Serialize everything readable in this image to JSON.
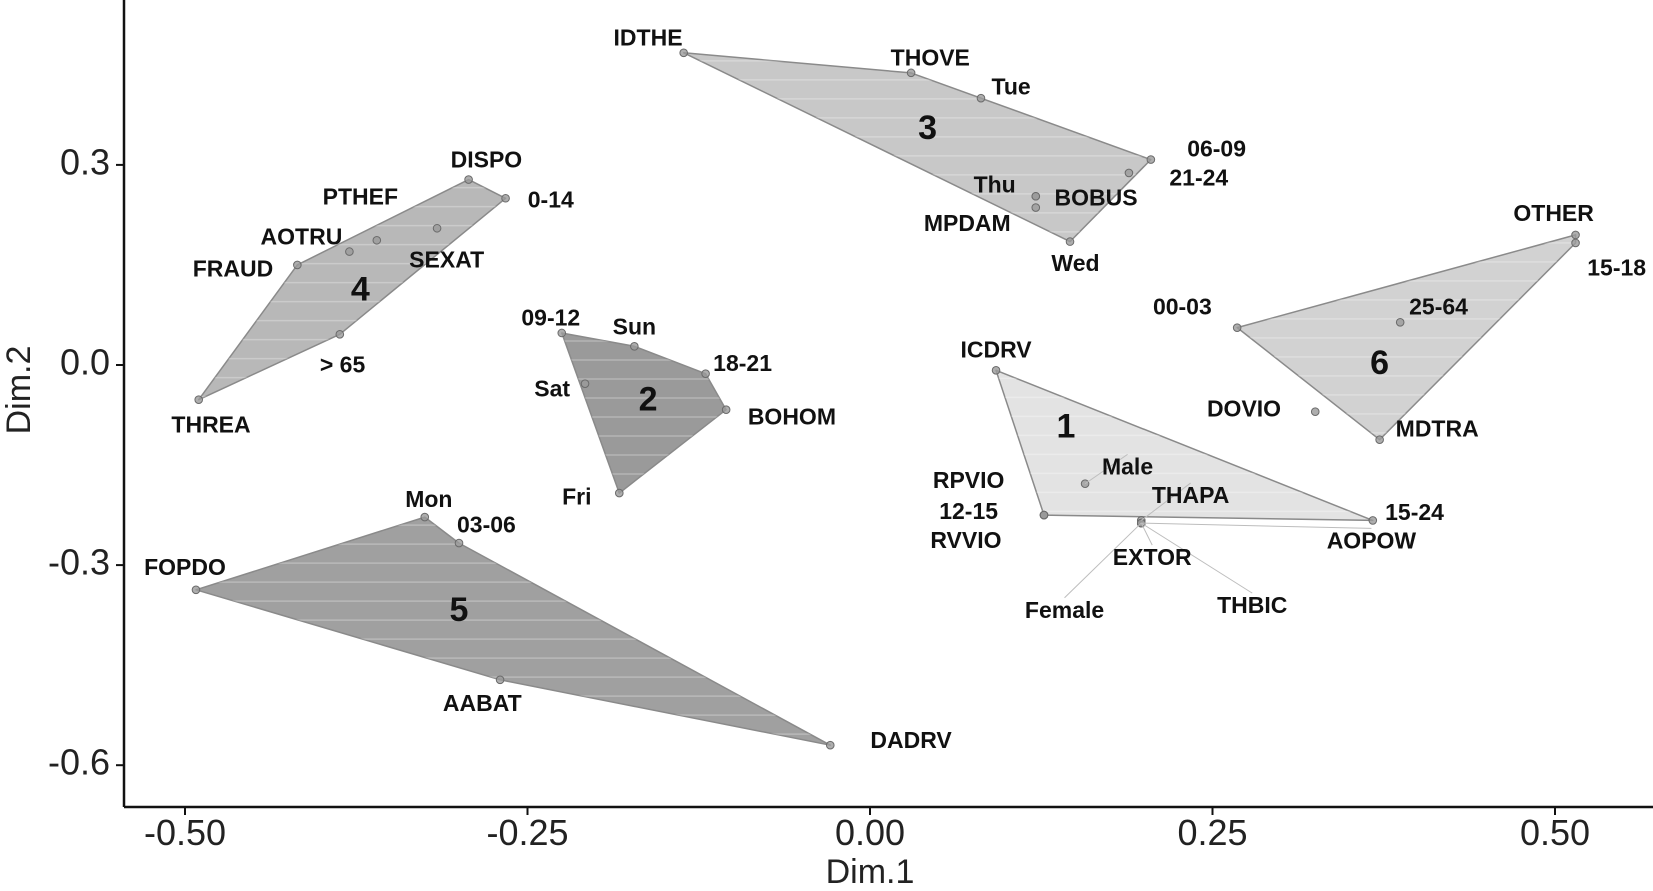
{
  "chart_data": {
    "type": "scatter",
    "xlabel": "Dim.1",
    "ylabel": "Dim.2",
    "xlim": [
      -0.53,
      0.56
    ],
    "ylim": [
      -0.62,
      0.52
    ],
    "xticks": [
      "-0.50",
      "-0.25",
      "0.00",
      "0.25",
      "0.50"
    ],
    "xtick_values": [
      -0.5,
      -0.25,
      0,
      0.25,
      0.5
    ],
    "yticks": [
      "0.3",
      "0.0",
      "-0.3",
      "-0.6"
    ],
    "ytick_values": [
      0.3,
      0,
      -0.3,
      -0.6
    ],
    "grid": false,
    "clusters": [
      {
        "label": "1",
        "fill": "#e3e3e3",
        "label_at": [
          0.143,
          -0.095
        ],
        "hull": [
          "ICDRV",
          "15-24",
          "12-15"
        ],
        "points": [
          {
            "name": "ICDRV",
            "x": 0.092,
            "y": -0.008,
            "lx": 0.092,
            "ly": 0.02,
            "anchor": "middle"
          },
          {
            "name": "Male",
            "x": 0.157,
            "y": -0.178,
            "lx": 0.188,
            "ly": -0.155,
            "anchor": "middle"
          },
          {
            "name": "THAPA",
            "x": 0.198,
            "y": -0.233,
            "lx": 0.234,
            "ly": -0.198,
            "anchor": "middle"
          },
          {
            "name": "15-24",
            "x": 0.367,
            "y": -0.233,
            "lx": 0.376,
            "ly": -0.223,
            "anchor": "start"
          },
          {
            "name": "RPVIO",
            "x": 0.127,
            "y": -0.225,
            "lx": 0.072,
            "ly": -0.175,
            "anchor": "middle"
          },
          {
            "name": "12-15",
            "x": 0.127,
            "y": -0.225,
            "lx": 0.072,
            "ly": -0.222,
            "anchor": "middle"
          },
          {
            "name": "RVVIO",
            "x": 0.127,
            "y": -0.225,
            "lx": 0.096,
            "ly": -0.265,
            "anchor": "end"
          },
          {
            "name": "EXTOR",
            "x": 0.198,
            "y": -0.237,
            "lx": 0.206,
            "ly": -0.291,
            "anchor": "middle"
          },
          {
            "name": "AOPOW",
            "x": 0.198,
            "y": -0.237,
            "lx": 0.366,
            "ly": -0.266,
            "anchor": "middle"
          },
          {
            "name": "Female",
            "x": 0.198,
            "y": -0.237,
            "lx": 0.142,
            "ly": -0.37,
            "anchor": "middle"
          },
          {
            "name": "THBIC",
            "x": 0.198,
            "y": -0.237,
            "lx": 0.279,
            "ly": -0.363,
            "anchor": "middle"
          }
        ]
      },
      {
        "label": "2",
        "fill": "#9a9a9a",
        "label_at": [
          -0.162,
          -0.055
        ],
        "hull": [
          "09-12",
          "Sun",
          "18-21",
          "BOHOM",
          "Fri"
        ],
        "points": [
          {
            "name": "09-12",
            "x": -0.225,
            "y": 0.048,
            "lx": -0.233,
            "ly": 0.068,
            "anchor": "middle"
          },
          {
            "name": "Sun",
            "x": -0.172,
            "y": 0.028,
            "lx": -0.172,
            "ly": 0.055,
            "anchor": "middle"
          },
          {
            "name": "18-21",
            "x": -0.12,
            "y": -0.013,
            "lx": -0.093,
            "ly": 0.0,
            "anchor": "middle"
          },
          {
            "name": "BOHOM",
            "x": -0.105,
            "y": -0.067,
            "lx": -0.057,
            "ly": -0.08,
            "anchor": "middle"
          },
          {
            "name": "Sat",
            "x": -0.208,
            "y": -0.028,
            "lx": -0.232,
            "ly": -0.038,
            "anchor": "middle"
          },
          {
            "name": "Fri",
            "x": -0.183,
            "y": -0.192,
            "lx": -0.214,
            "ly": -0.2,
            "anchor": "middle"
          }
        ]
      },
      {
        "label": "3",
        "fill": "#c8c8c8",
        "label_at": [
          0.042,
          0.352
        ],
        "hull": [
          "IDTHE",
          "THOVE",
          "06-09",
          "Wed"
        ],
        "points": [
          {
            "name": "IDTHE",
            "x": -0.136,
            "y": 0.468,
            "lx": -0.162,
            "ly": 0.488,
            "anchor": "middle"
          },
          {
            "name": "THOVE",
            "x": 0.03,
            "y": 0.438,
            "lx": 0.044,
            "ly": 0.458,
            "anchor": "middle"
          },
          {
            "name": "Tue",
            "x": 0.081,
            "y": 0.4,
            "lx": 0.103,
            "ly": 0.415,
            "anchor": "middle"
          },
          {
            "name": "06-09",
            "x": 0.205,
            "y": 0.308,
            "lx": 0.253,
            "ly": 0.322,
            "anchor": "middle"
          },
          {
            "name": "21-24",
            "x": 0.189,
            "y": 0.288,
            "lx": 0.24,
            "ly": 0.278,
            "anchor": "middle"
          },
          {
            "name": "Thu",
            "x": 0.121,
            "y": 0.253,
            "lx": 0.091,
            "ly": 0.268,
            "anchor": "middle"
          },
          {
            "name": "BOBUS",
            "x": 0.121,
            "y": 0.253,
            "lx": 0.165,
            "ly": 0.248,
            "anchor": "middle"
          },
          {
            "name": "MPDAM",
            "x": 0.121,
            "y": 0.236,
            "lx": 0.071,
            "ly": 0.21,
            "anchor": "middle"
          },
          {
            "name": "Wed",
            "x": 0.146,
            "y": 0.185,
            "lx": 0.15,
            "ly": 0.15,
            "anchor": "middle"
          }
        ]
      },
      {
        "label": "4",
        "fill": "#b8b8b8",
        "label_at": [
          -0.372,
          0.11
        ],
        "hull": [
          "DISPO",
          "0-14",
          "> 65",
          "THREA",
          "FRAUD"
        ],
        "points": [
          {
            "name": "DISPO",
            "x": -0.293,
            "y": 0.278,
            "lx": -0.28,
            "ly": 0.305,
            "anchor": "middle"
          },
          {
            "name": "0-14",
            "x": -0.266,
            "y": 0.25,
            "lx": -0.233,
            "ly": 0.245,
            "anchor": "middle"
          },
          {
            "name": "PTHEF",
            "x": -0.36,
            "y": 0.187,
            "lx": -0.372,
            "ly": 0.25,
            "anchor": "middle"
          },
          {
            "name": "AOTRU",
            "x": -0.38,
            "y": 0.17,
            "lx": -0.415,
            "ly": 0.19,
            "anchor": "middle"
          },
          {
            "name": "FRAUD",
            "x": -0.418,
            "y": 0.15,
            "lx": -0.465,
            "ly": 0.142,
            "anchor": "middle"
          },
          {
            "name": "SEXAT",
            "x": -0.316,
            "y": 0.205,
            "lx": -0.309,
            "ly": 0.155,
            "anchor": "middle"
          },
          {
            "name": "> 65",
            "x": -0.387,
            "y": 0.046,
            "lx": -0.385,
            "ly": -0.002,
            "anchor": "middle"
          },
          {
            "name": "THREA",
            "x": -0.49,
            "y": -0.052,
            "lx": -0.481,
            "ly": -0.092,
            "anchor": "middle"
          }
        ]
      },
      {
        "label": "5",
        "fill": "#a0a0a0",
        "label_at": [
          -0.3,
          -0.37
        ],
        "hull": [
          "FOPDO",
          "Mon",
          "03-06",
          "DADRV",
          "AABAT"
        ],
        "points": [
          {
            "name": "FOPDO",
            "x": -0.492,
            "y": -0.337,
            "lx": -0.5,
            "ly": -0.306,
            "anchor": "middle"
          },
          {
            "name": "Mon",
            "x": -0.325,
            "y": -0.228,
            "lx": -0.322,
            "ly": -0.204,
            "anchor": "middle"
          },
          {
            "name": "03-06",
            "x": -0.3,
            "y": -0.267,
            "lx": -0.28,
            "ly": -0.242,
            "anchor": "middle"
          },
          {
            "name": "AABAT",
            "x": -0.27,
            "y": -0.472,
            "lx": -0.283,
            "ly": -0.51,
            "anchor": "middle"
          },
          {
            "name": "DADRV",
            "x": -0.029,
            "y": -0.57,
            "lx": 0.03,
            "ly": -0.565,
            "anchor": "middle"
          }
        ]
      },
      {
        "label": "6",
        "fill": "#d2d2d2",
        "label_at": [
          0.372,
          0.0
        ],
        "hull": [
          "00-03",
          "OTHER",
          "15-18",
          "MDTRA"
        ],
        "points": [
          {
            "name": "OTHER",
            "x": 0.515,
            "y": 0.195,
            "lx": 0.499,
            "ly": 0.225,
            "anchor": "middle"
          },
          {
            "name": "15-18",
            "x": 0.515,
            "y": 0.183,
            "lx": 0.545,
            "ly": 0.143,
            "anchor": "middle"
          },
          {
            "name": "00-03",
            "x": 0.268,
            "y": 0.056,
            "lx": 0.228,
            "ly": 0.085,
            "anchor": "middle"
          },
          {
            "name": "25-64",
            "x": 0.387,
            "y": 0.064,
            "lx": 0.415,
            "ly": 0.085,
            "anchor": "middle"
          },
          {
            "name": "DOVIO",
            "x": 0.325,
            "y": -0.07,
            "lx": 0.273,
            "ly": -0.068,
            "anchor": "middle"
          },
          {
            "name": "MDTRA",
            "x": 0.372,
            "y": -0.112,
            "lx": 0.414,
            "ly": -0.098,
            "anchor": "middle"
          }
        ]
      }
    ]
  }
}
